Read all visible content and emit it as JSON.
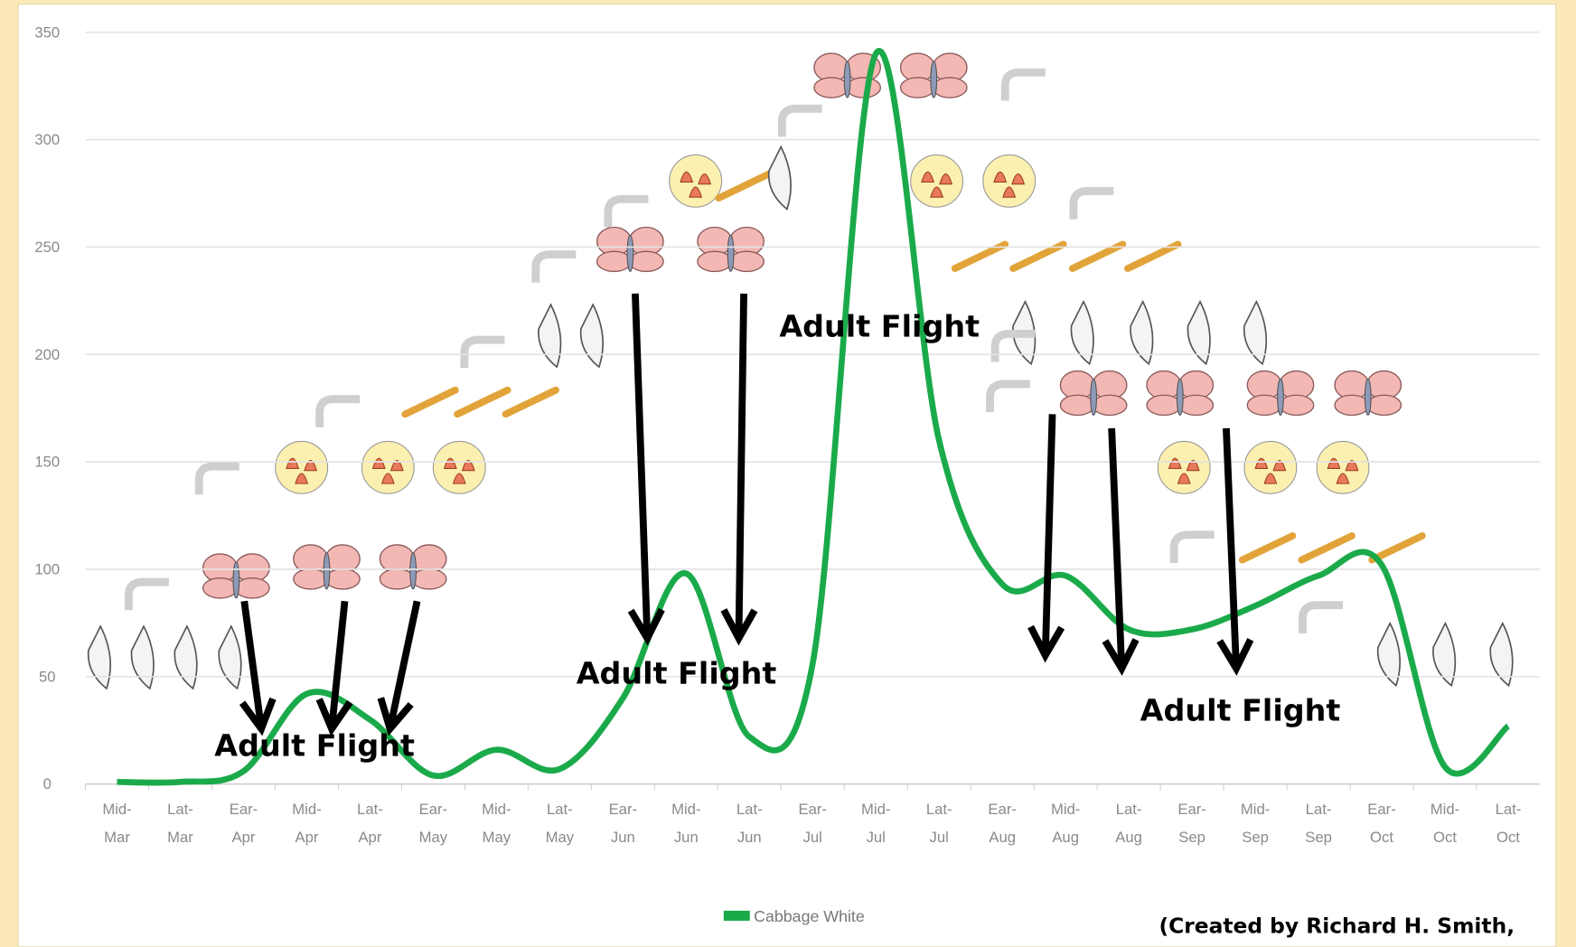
{
  "chart_data": {
    "type": "line",
    "categories": [
      "Mid-Mar",
      "Lat-Mar",
      "Ear-Apr",
      "Mid-Apr",
      "Lat-Apr",
      "Ear-May",
      "Mid-May",
      "Lat-May",
      "Ear-Jun",
      "Mid-Jun",
      "Lat-Jun",
      "Ear-Jul",
      "Mid-Jul",
      "Lat-Jul",
      "Ear-Aug",
      "Mid-Aug",
      "Lat-Aug",
      "Ear-Sep",
      "Mid-Sep",
      "Lat-Sep",
      "Ear-Oct",
      "Mid-Oct",
      "Lat-Oct"
    ],
    "series": [
      {
        "name": "Cabbage White",
        "color": "#1aaa4a",
        "values": [
          1,
          1,
          6,
          42,
          30,
          4,
          16,
          7,
          40,
          98,
          22,
          56,
          340,
          160,
          93,
          97,
          72,
          72,
          83,
          97,
          102,
          8,
          27
        ]
      }
    ],
    "ylim": [
      0,
      350
    ],
    "yticks": [
      0,
      50,
      100,
      150,
      200,
      250,
      300,
      350
    ],
    "grid": true,
    "legend": "bottom",
    "annotations": [
      "Adult Flight",
      "Adult Flight",
      "Adult Flight",
      "Adult Flight",
      "(Created by Richard H. Smith,"
    ]
  }
}
